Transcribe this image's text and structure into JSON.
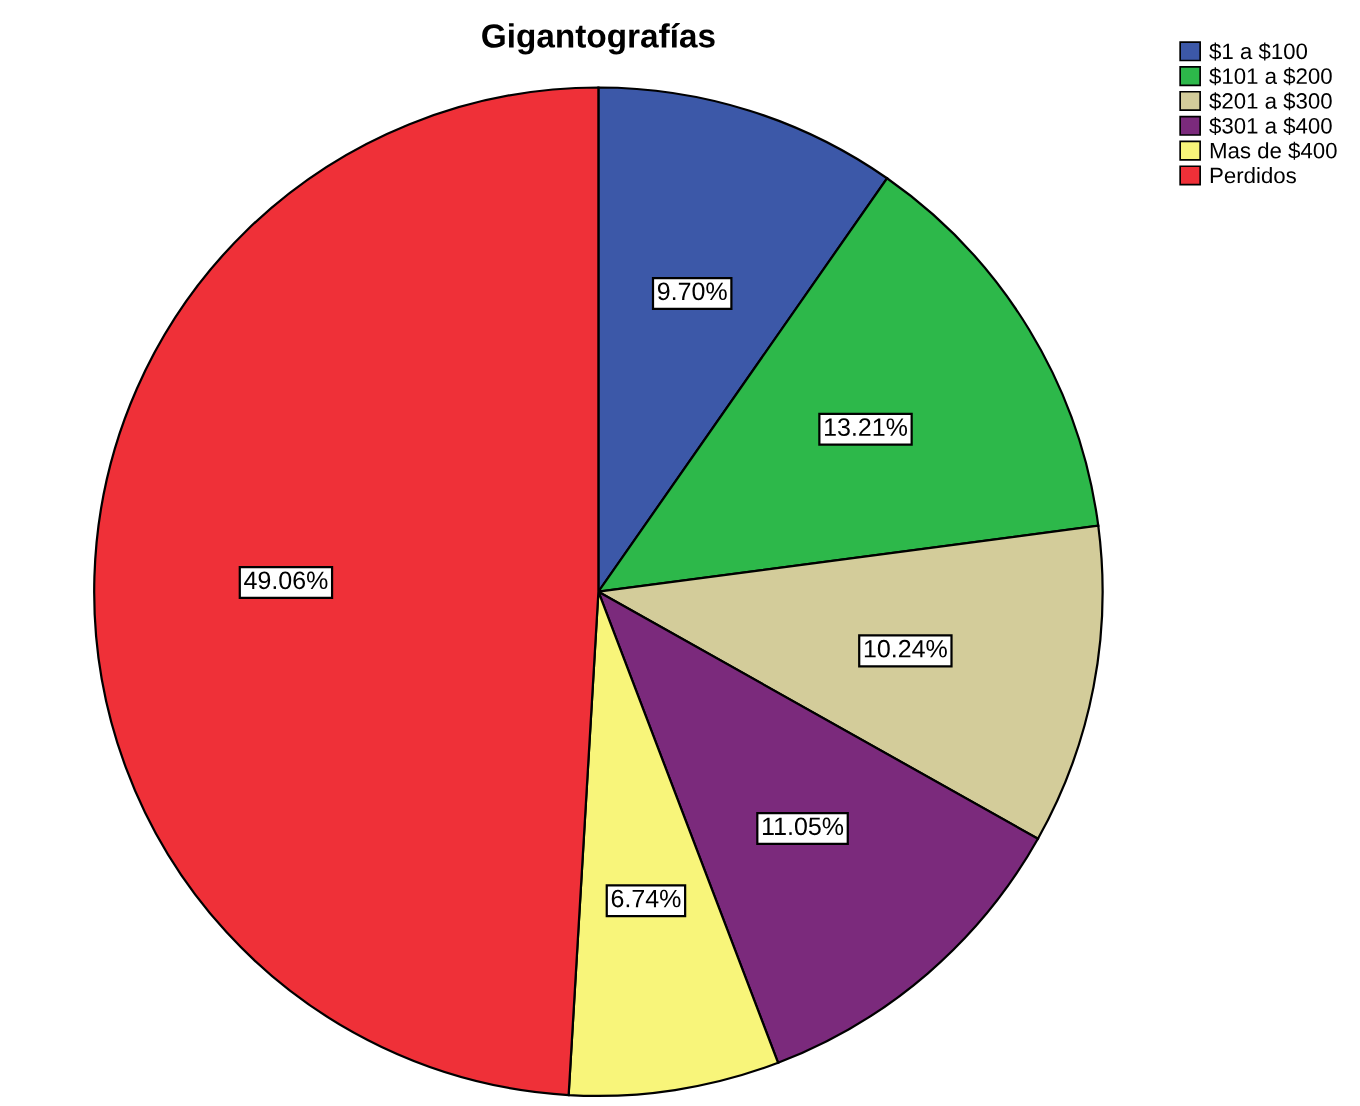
{
  "chart_data": {
    "type": "pie",
    "title": "Gigantografías",
    "categories": [
      "$1 a $100",
      "$101 a $200",
      "$201 a $300",
      "$301 a $400",
      "Mas de $400",
      "Perdidos"
    ],
    "values": [
      9.7,
      13.21,
      10.24,
      11.05,
      6.74,
      49.06
    ],
    "value_labels": [
      "9.70%",
      "13.21%",
      "10.24%",
      "11.05%",
      "6.74%",
      "49.06%"
    ],
    "colors": [
      "#3c58a8",
      "#2db84a",
      "#d3cc9a",
      "#7b2a7c",
      "#f8f57a",
      "#ef3038"
    ],
    "legend": "top right"
  }
}
